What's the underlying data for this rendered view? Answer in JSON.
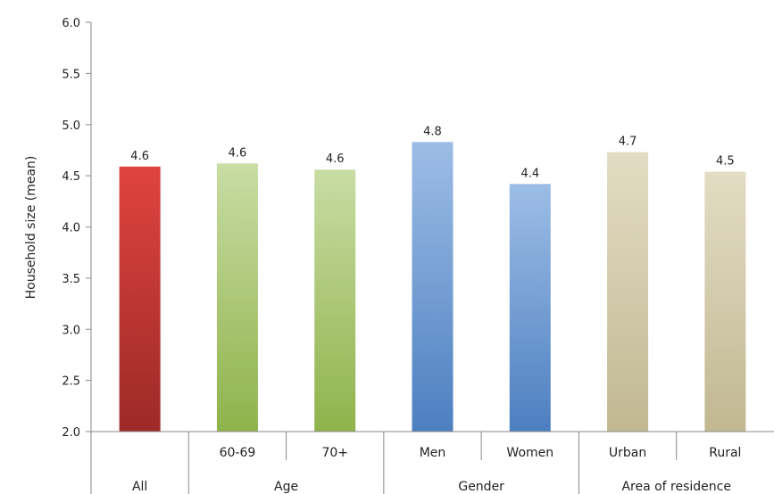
{
  "chart_data": {
    "type": "bar",
    "categories": [
      "All",
      "60-69",
      "70+",
      "Men",
      "Women",
      "Urban",
      "Rural"
    ],
    "values": [
      4.6,
      4.6,
      4.6,
      4.8,
      4.4,
      4.7,
      4.5
    ],
    "plotted_values": [
      4.59,
      4.62,
      4.56,
      4.83,
      4.42,
      4.73,
      4.54
    ],
    "groups": [
      {
        "label": "All",
        "members": [
          0
        ],
        "show_member_labels": false
      },
      {
        "label": "Age",
        "members": [
          1,
          2
        ],
        "show_member_labels": true
      },
      {
        "label": "Gender",
        "members": [
          3,
          4
        ],
        "show_member_labels": true
      },
      {
        "label": "Area of residence",
        "members": [
          5,
          6
        ],
        "show_member_labels": true
      }
    ],
    "ylabel": "Household size (mean)",
    "xlabel": "",
    "title": "",
    "ylim": [
      2.0,
      6.0
    ],
    "yticks": [
      "2.0",
      "2.5",
      "3.0",
      "3.5",
      "4.0",
      "4.5",
      "5.0",
      "5.5",
      "6.0"
    ],
    "grid": false,
    "legend": "none",
    "bar_colors": [
      {
        "top": "#e0433f",
        "bottom": "#9c2a27"
      },
      {
        "top": "#c8dca4",
        "bottom": "#8fb34b"
      },
      {
        "top": "#c8dca4",
        "bottom": "#8fb34b"
      },
      {
        "top": "#9dbde6",
        "bottom": "#4d7fc0"
      },
      {
        "top": "#9dbde6",
        "bottom": "#4d7fc0"
      },
      {
        "top": "#e2dcc4",
        "bottom": "#c1b891"
      },
      {
        "top": "#e2dcc4",
        "bottom": "#c1b891"
      }
    ]
  }
}
